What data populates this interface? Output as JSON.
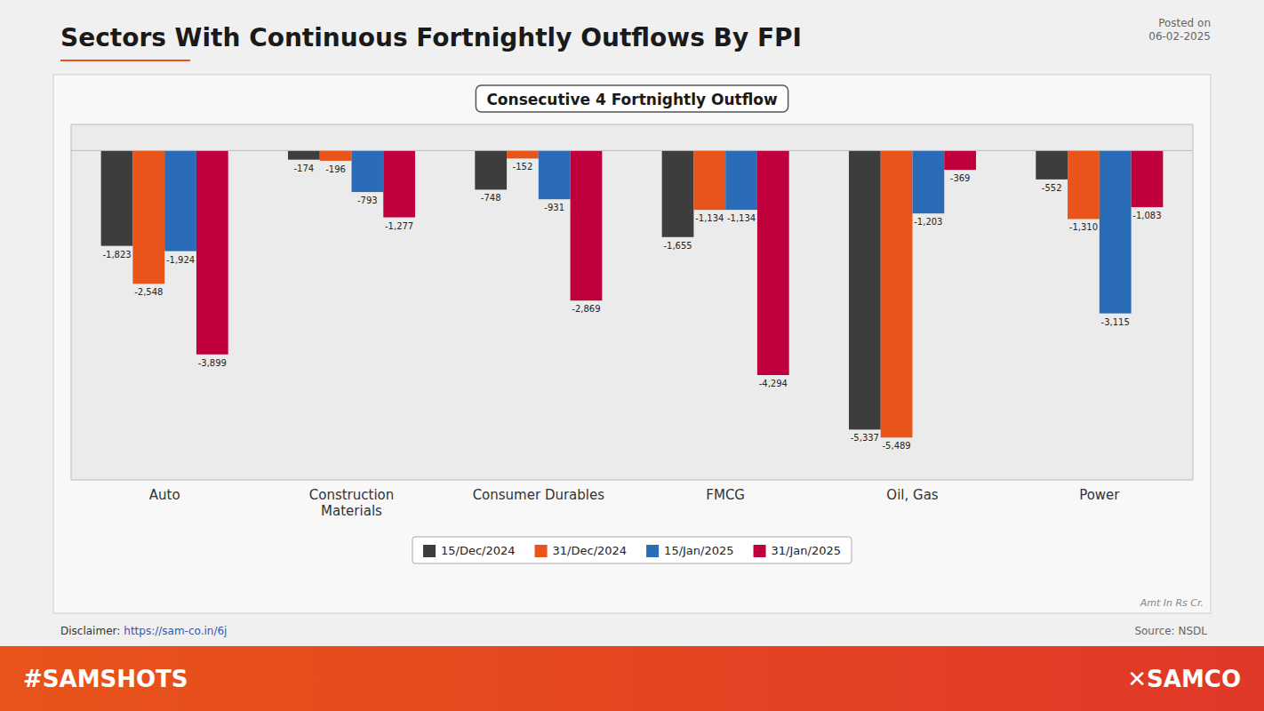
{
  "chart_data": {
    "type": "bar",
    "title": "Sectors With Continuous Fortnightly Outflows By FPI",
    "subtitle": "Consecutive 4 Fortnightly Outflow",
    "categories": [
      "Auto",
      "Construction\nMaterials",
      "Consumer Durables",
      "FMCG",
      "Oil, Gas",
      "Power"
    ],
    "series": [
      {
        "name": "15/Dec/2024",
        "color": "#3d3d3d",
        "values": [
          -1823,
          -174,
          -748,
          -1655,
          -5337,
          -552
        ],
        "value_labels": [
          "-1,823",
          "-174",
          "-748",
          "-1,655",
          "-5,337",
          "-552"
        ]
      },
      {
        "name": "31/Dec/2024",
        "color": "#e8541a",
        "values": [
          -2548,
          -196,
          -152,
          -1134,
          -5489,
          -1310
        ],
        "value_labels": [
          "-2,548",
          "-196",
          "-152",
          "-1,134",
          "-5,489",
          "-1,310"
        ]
      },
      {
        "name": "15/Jan/2025",
        "color": "#2b6cb8",
        "values": [
          -1924,
          -793,
          -931,
          -1134,
          -1203,
          -3115
        ],
        "value_labels": [
          "-1,924",
          "-793",
          "-931",
          "-1,134",
          "-1,203",
          "-3,115"
        ]
      },
      {
        "name": "31/Jan/2025",
        "color": "#c0003c",
        "values": [
          -3899,
          -1277,
          -2869,
          -4294,
          -369,
          -1083
        ],
        "value_labels": [
          "-3,899",
          "-1,277",
          "-2,869",
          "-4,294",
          "-369",
          "-1,083"
        ]
      }
    ],
    "ylim": [
      -6300,
      500
    ],
    "grid": false,
    "stacked": false,
    "data_labels": true,
    "tick_labels": "x",
    "legend": "bottom",
    "annotations": [
      "Posted on\n06-02-2025",
      "Amt In Rs Cr.",
      "Source: NSDL",
      "Disclaimer: ",
      "https://sam-co.in/6j",
      "#SAMSHOTS",
      "✕SAMCO"
    ]
  }
}
